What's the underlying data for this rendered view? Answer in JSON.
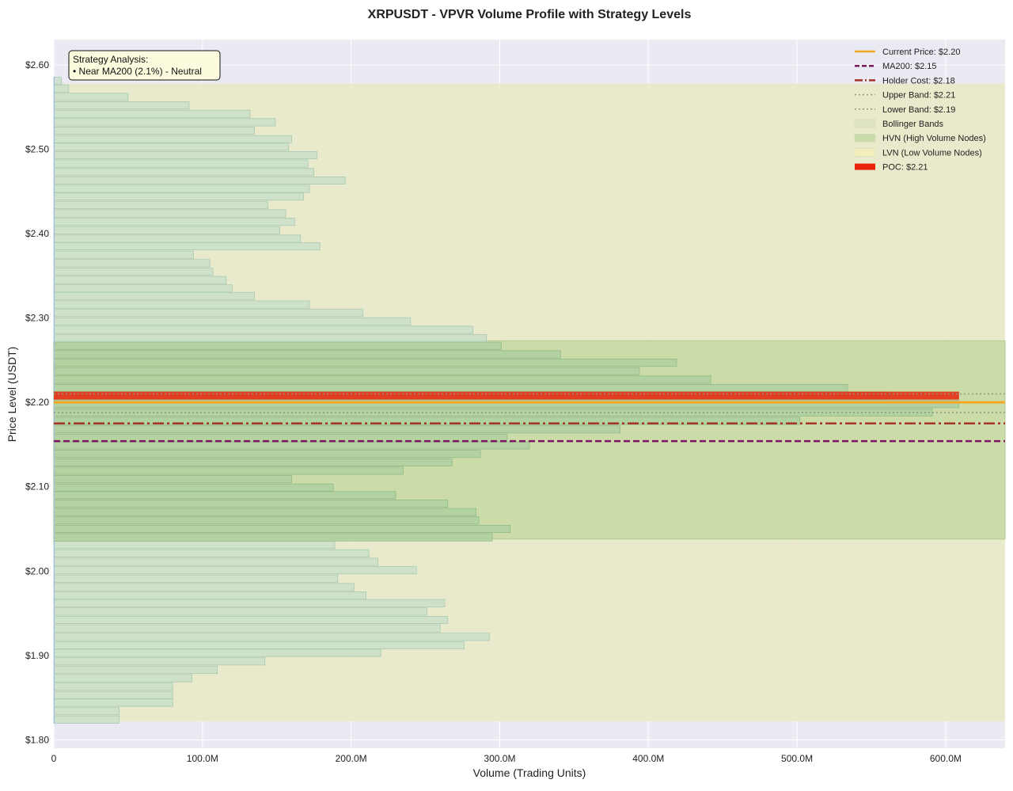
{
  "chart_data": {
    "type": "bar",
    "orientation": "horizontal",
    "title": "XRPUSDT - VPVR Volume Profile with Strategy Levels",
    "xlabel": "Volume (Trading Units)",
    "ylabel": "Price Level (USDT)",
    "xlim": [
      0,
      640
    ],
    "ylim": [
      1.79,
      2.63
    ],
    "x_ticks": [
      0,
      100,
      200,
      300,
      400,
      500,
      600
    ],
    "x_tick_labels": [
      "0",
      "100.0M",
      "200.0M",
      "300.0M",
      "400.0M",
      "500.0M",
      "600.0M"
    ],
    "y_ticks": [
      1.8,
      1.9,
      2.0,
      2.1,
      2.2,
      2.3,
      2.4,
      2.5,
      2.6
    ],
    "y_tick_labels": [
      "$1.80",
      "$1.90",
      "$2.00",
      "$2.10",
      "$2.20",
      "$2.30",
      "$2.40",
      "$2.50",
      "$2.60"
    ],
    "grid": true,
    "legend_position": "top-right",
    "volume_unit": "M",
    "bin_height": 0.0098,
    "price_levels": [
      1.824,
      1.834,
      1.844,
      1.853,
      1.863,
      1.873,
      1.883,
      1.893,
      1.903,
      1.912,
      1.922,
      1.932,
      1.942,
      1.952,
      1.962,
      1.971,
      1.981,
      1.991,
      2.001,
      2.011,
      2.021,
      2.031,
      2.04,
      2.05,
      2.06,
      2.07,
      2.08,
      2.09,
      2.099,
      2.109,
      2.119,
      2.129,
      2.139,
      2.149,
      2.158,
      2.168,
      2.178,
      2.188,
      2.198,
      2.208,
      2.217,
      2.227,
      2.237,
      2.247,
      2.257,
      2.267,
      2.276,
      2.286,
      2.296,
      2.306,
      2.316,
      2.326,
      2.335,
      2.345,
      2.355,
      2.365,
      2.375,
      2.385,
      2.394,
      2.404,
      2.414,
      2.424,
      2.434,
      2.444,
      2.453,
      2.463,
      2.473,
      2.483,
      2.493,
      2.503,
      2.512,
      2.522,
      2.532,
      2.542,
      2.552,
      2.562,
      2.572,
      2.581
    ],
    "volumes": [
      44,
      44,
      80,
      80,
      80,
      93,
      110,
      142,
      220,
      276,
      293,
      260,
      265,
      251,
      263,
      210,
      202,
      191,
      244,
      218,
      212,
      189,
      295,
      307,
      286,
      284,
      265,
      230,
      188,
      160,
      235,
      268,
      287,
      320,
      305,
      381,
      502,
      591,
      609,
      562,
      534,
      442,
      394,
      419,
      341,
      301,
      291,
      282,
      240,
      208,
      172,
      135,
      120,
      116,
      107,
      105,
      94,
      179,
      166,
      152,
      162,
      156,
      144,
      168,
      172,
      196,
      175,
      171,
      177,
      158,
      160,
      135,
      149,
      132,
      91,
      50,
      10,
      5
    ],
    "bollinger_bands": {
      "lower": 1.822,
      "upper": 2.578
    },
    "hvn_range": [
      2.038,
      2.273
    ],
    "current_price": 2.2,
    "ma200": 2.154,
    "holder_cost": 2.175,
    "upper_band": 2.21,
    "lower_band": 2.188,
    "poc": 2.208,
    "legend": [
      {
        "label": "Current Price: $2.20",
        "style": "solid",
        "color": "#f5a623"
      },
      {
        "label": "MA200: $2.15",
        "style": "dashed",
        "color": "#7b1561"
      },
      {
        "label": "Holder Cost: $2.18",
        "style": "dashdot",
        "color": "#a53326"
      },
      {
        "label": "Upper Band: $2.21",
        "style": "dotted",
        "color": "#8a9a7a"
      },
      {
        "label": "Lower Band: $2.19",
        "style": "dotted",
        "color": "#8a9a7a"
      },
      {
        "label": "Bollinger Bands",
        "style": "patch",
        "color": "#dde2c0"
      },
      {
        "label": "HVN (High Volume Nodes)",
        "style": "patch",
        "color": "#c8dba8"
      },
      {
        "label": "LVN (Low Volume Nodes)",
        "style": "patch",
        "color": "#f3efbd"
      },
      {
        "label": "POC: $2.21",
        "style": "thick",
        "color": "#e8230a"
      }
    ],
    "annotation": {
      "title": "Strategy Analysis:",
      "line": "• Near MA200 (2.1%) - Neutral"
    }
  }
}
